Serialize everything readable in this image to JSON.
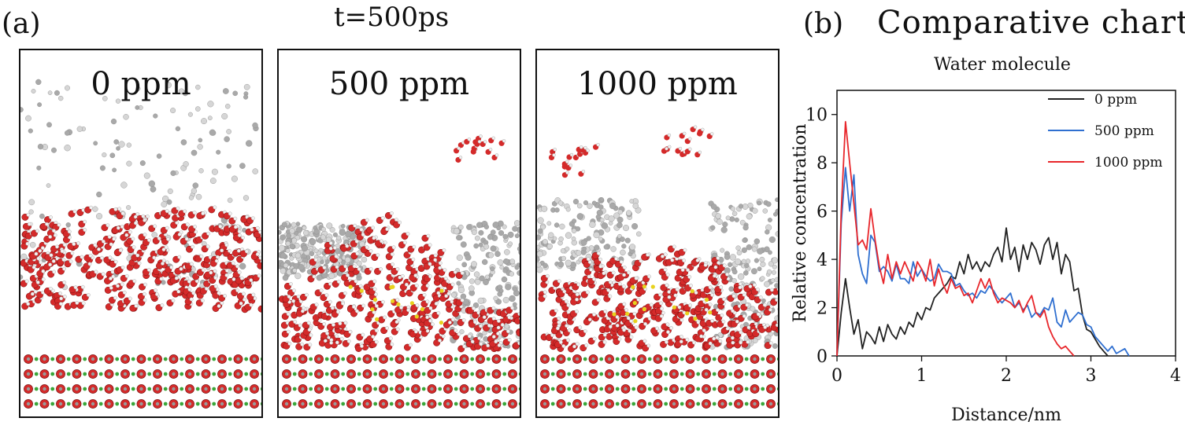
{
  "figure": {
    "panel_a_label": "(a)",
    "panel_a_title": "t=500ps",
    "panel_b_label": "(b)",
    "panel_b_title": "Comparative chart"
  },
  "snapshots": [
    {
      "label": "0 ppm"
    },
    {
      "label": "500 ppm"
    },
    {
      "label": "1000 ppm"
    }
  ],
  "colors": {
    "oxygen": "#d42a2a",
    "hydrogen": "#f2f2f2",
    "hydrocarbon": "#a9a9a9",
    "substrate_green": "#3aa63a",
    "additive": "#e8d21e",
    "series_0": "#222222",
    "series_500": "#2f6fd0",
    "series_1000": "#e8262b"
  },
  "chart_data": {
    "type": "line",
    "title": "Water molecule",
    "xlabel": "Distance/nm",
    "ylabel": "Relative concentration",
    "xlim": [
      0,
      4
    ],
    "ylim": [
      0,
      11
    ],
    "xticks": [
      "0",
      "1",
      "2",
      "3",
      "4"
    ],
    "yticks": [
      "0",
      "2",
      "4",
      "6",
      "8",
      "10"
    ],
    "legend_position": "top-right",
    "series": [
      {
        "name": "0 ppm",
        "color": "#222222",
        "x": [
          0.0,
          0.05,
          0.1,
          0.15,
          0.2,
          0.25,
          0.3,
          0.35,
          0.4,
          0.45,
          0.5,
          0.55,
          0.6,
          0.65,
          0.7,
          0.75,
          0.8,
          0.85,
          0.9,
          0.95,
          1.0,
          1.05,
          1.1,
          1.15,
          1.2,
          1.25,
          1.3,
          1.35,
          1.4,
          1.45,
          1.5,
          1.55,
          1.6,
          1.65,
          1.7,
          1.75,
          1.8,
          1.85,
          1.9,
          1.95,
          2.0,
          2.05,
          2.1,
          2.15,
          2.2,
          2.25,
          2.3,
          2.35,
          2.4,
          2.45,
          2.5,
          2.55,
          2.6,
          2.65,
          2.7,
          2.75,
          2.8,
          2.85,
          2.9,
          2.95,
          3.0,
          3.05,
          3.1,
          3.15,
          3.2
        ],
        "y": [
          0.0,
          1.8,
          3.2,
          2.0,
          0.9,
          1.5,
          0.3,
          1.0,
          0.8,
          0.5,
          1.2,
          0.6,
          1.3,
          0.9,
          0.7,
          1.2,
          0.9,
          1.4,
          1.2,
          1.8,
          1.5,
          2.0,
          1.9,
          2.4,
          2.6,
          2.8,
          3.0,
          3.3,
          3.2,
          3.9,
          3.4,
          4.2,
          3.6,
          3.9,
          3.5,
          3.9,
          3.7,
          4.2,
          4.5,
          3.9,
          5.3,
          4.0,
          4.5,
          3.5,
          4.6,
          4.0,
          4.7,
          4.4,
          3.8,
          4.6,
          4.9,
          4.0,
          4.7,
          3.4,
          4.2,
          3.9,
          2.7,
          2.8,
          1.7,
          1.1,
          1.0,
          0.7,
          0.4,
          0.2,
          0.0
        ]
      },
      {
        "name": "500 ppm",
        "color": "#2f6fd0",
        "x": [
          0.0,
          0.05,
          0.1,
          0.15,
          0.2,
          0.25,
          0.3,
          0.35,
          0.4,
          0.45,
          0.5,
          0.55,
          0.6,
          0.65,
          0.7,
          0.75,
          0.8,
          0.85,
          0.9,
          0.95,
          1.0,
          1.05,
          1.1,
          1.15,
          1.2,
          1.25,
          1.3,
          1.35,
          1.4,
          1.45,
          1.5,
          1.55,
          1.6,
          1.65,
          1.7,
          1.75,
          1.8,
          1.85,
          1.9,
          1.95,
          2.0,
          2.05,
          2.1,
          2.15,
          2.2,
          2.25,
          2.3,
          2.35,
          2.4,
          2.45,
          2.5,
          2.55,
          2.6,
          2.65,
          2.7,
          2.75,
          2.8,
          2.85,
          2.9,
          2.95,
          3.0,
          3.05,
          3.1,
          3.15,
          3.2,
          3.25,
          3.3,
          3.35,
          3.4,
          3.45
        ],
        "y": [
          0.0,
          5.5,
          7.8,
          6.0,
          7.5,
          4.2,
          3.4,
          3.0,
          5.0,
          4.7,
          3.5,
          3.7,
          3.5,
          3.1,
          3.8,
          3.2,
          3.2,
          3.0,
          3.9,
          3.3,
          3.6,
          3.3,
          3.1,
          3.2,
          3.8,
          3.5,
          3.5,
          3.4,
          2.9,
          3.0,
          2.7,
          2.5,
          2.6,
          2.4,
          2.7,
          2.6,
          2.9,
          2.7,
          2.4,
          2.2,
          2.4,
          2.6,
          2.0,
          2.2,
          1.9,
          2.1,
          1.6,
          1.8,
          1.7,
          2.0,
          1.9,
          2.4,
          1.4,
          1.2,
          1.9,
          1.4,
          1.6,
          1.8,
          1.7,
          1.3,
          1.2,
          0.8,
          0.6,
          0.4,
          0.2,
          0.4,
          0.1,
          0.2,
          0.3,
          0.0
        ]
      },
      {
        "name": "1000 ppm",
        "color": "#e8262b",
        "x": [
          0.0,
          0.05,
          0.1,
          0.15,
          0.2,
          0.25,
          0.3,
          0.35,
          0.4,
          0.45,
          0.5,
          0.55,
          0.6,
          0.65,
          0.7,
          0.75,
          0.8,
          0.85,
          0.9,
          0.95,
          1.0,
          1.05,
          1.1,
          1.15,
          1.2,
          1.25,
          1.3,
          1.35,
          1.4,
          1.45,
          1.5,
          1.55,
          1.6,
          1.65,
          1.7,
          1.75,
          1.8,
          1.85,
          1.9,
          1.95,
          2.0,
          2.05,
          2.1,
          2.15,
          2.2,
          2.25,
          2.3,
          2.35,
          2.4,
          2.45,
          2.5,
          2.55,
          2.6,
          2.65,
          2.7,
          2.75,
          2.8
        ],
        "y": [
          0.0,
          6.0,
          9.7,
          8.0,
          6.3,
          4.6,
          4.8,
          4.4,
          6.1,
          4.8,
          3.7,
          3.0,
          4.2,
          3.2,
          3.9,
          3.4,
          3.9,
          3.5,
          3.1,
          3.9,
          3.6,
          3.1,
          4.0,
          2.9,
          3.6,
          3.0,
          2.6,
          3.2,
          2.8,
          2.9,
          2.5,
          2.6,
          2.2,
          2.7,
          3.2,
          2.8,
          3.2,
          2.6,
          2.2,
          2.4,
          2.3,
          2.2,
          2.0,
          2.3,
          1.8,
          2.2,
          2.5,
          1.8,
          1.6,
          1.9,
          1.2,
          0.8,
          0.5,
          0.3,
          0.4,
          0.2,
          0.0
        ]
      }
    ]
  }
}
